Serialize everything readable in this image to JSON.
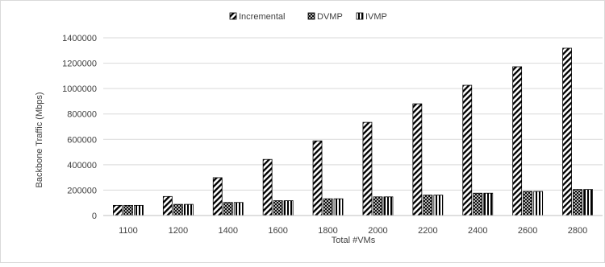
{
  "chart_data": {
    "type": "bar",
    "title": "",
    "xlabel": "Total #VMs",
    "ylabel": "Backbone Traffic (Mbps)",
    "ylim": [
      0,
      1400000
    ],
    "yticks": [
      0,
      200000,
      400000,
      600000,
      800000,
      1000000,
      1200000,
      1400000
    ],
    "grid": true,
    "legend_position": "top-center",
    "categories": [
      "1100",
      "1200",
      "1400",
      "1600",
      "1800",
      "2000",
      "2200",
      "2400",
      "2600",
      "2800"
    ],
    "series": [
      {
        "name": "Incremental",
        "pattern": "diagonal-stripes",
        "values": [
          80000,
          150000,
          298000,
          442000,
          588000,
          734000,
          880000,
          1026000,
          1172000,
          1318000
        ]
      },
      {
        "name": "DVMP",
        "pattern": "crosshatch",
        "values": [
          80000,
          88000,
          103000,
          117000,
          132000,
          147000,
          161000,
          176000,
          190000,
          205000
        ]
      },
      {
        "name": "IVMP",
        "pattern": "vertical-stripes",
        "values": [
          80000,
          88000,
          103000,
          117000,
          132000,
          147000,
          161000,
          176000,
          190000,
          205000
        ]
      }
    ],
    "colors": {
      "bar_stroke": "#000000",
      "grid": "#d9d9d9",
      "axis": "#bfbfbf",
      "frame": "#d9d9d9",
      "text": "#404040"
    }
  }
}
